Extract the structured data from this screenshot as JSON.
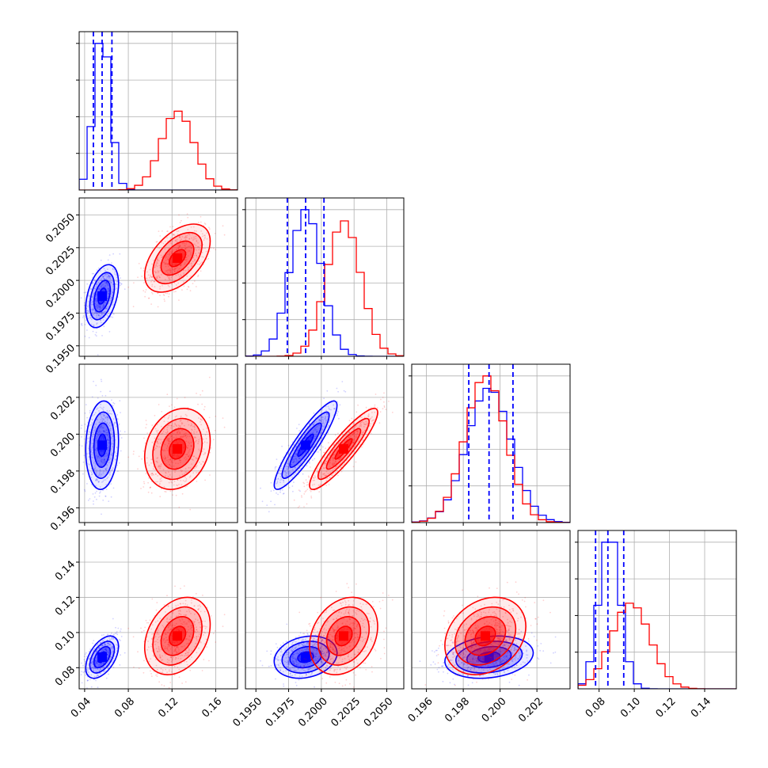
{
  "colors": {
    "series_a": "#0000ff",
    "series_b": "#ff0000",
    "grid": "#b0b0b0",
    "frame": "#000000"
  },
  "chart_data": {
    "type": "corner",
    "grid": true,
    "parameters": [
      {
        "range": [
          0.035,
          0.18
        ],
        "ticks": [
          "0.04",
          "0.08",
          "0.12",
          "0.16"
        ],
        "tick_values": [
          0.04,
          0.08,
          0.12,
          0.16
        ]
      },
      {
        "range": [
          0.1942,
          0.2063
        ],
        "ticks": [
          "0.1950",
          "0.1975",
          "0.2000",
          "0.2025",
          "0.2050"
        ],
        "tick_values": [
          0.195,
          0.1975,
          0.2,
          0.2025,
          0.205
        ]
      },
      {
        "range": [
          0.1952,
          0.2038
        ],
        "ticks": [
          "0.196",
          "0.198",
          "0.200",
          "0.202"
        ],
        "tick_values": [
          0.196,
          0.198,
          0.2,
          0.202
        ]
      },
      {
        "range": [
          0.068,
          0.158
        ],
        "ticks": [
          "0.08",
          "0.10",
          "0.12",
          "0.14"
        ],
        "tick_values": [
          0.08,
          0.1,
          0.12,
          0.14
        ]
      }
    ],
    "series": [
      {
        "color": "blue",
        "means": [
          0.056,
          0.1988,
          0.1994,
          0.086
        ],
        "sds": [
          0.0075,
          0.0012,
          0.0012,
          0.006
        ],
        "quantiles": [
          [
            0.048,
            0.056,
            0.065
          ],
          [
            0.1974,
            0.1988,
            0.2002
          ],
          [
            0.1983,
            0.1994,
            0.2007
          ],
          [
            0.078,
            0.085,
            0.094
          ]
        ]
      },
      {
        "color": "red",
        "means": [
          0.125,
          0.2017,
          0.1992,
          0.098
        ],
        "sds": [
          0.015,
          0.0013,
          0.0011,
          0.011
        ]
      }
    ],
    "correlations": [
      {
        "pair": [
          0,
          1
        ],
        "blue": 0.4,
        "red": 0.5
      },
      {
        "pair": [
          0,
          2
        ],
        "blue": 0.1,
        "red": 0.2
      },
      {
        "pair": [
          0,
          3
        ],
        "blue": 0.5,
        "red": 0.3
      },
      {
        "pair": [
          1,
          2
        ],
        "blue": 0.9,
        "red": 0.9
      },
      {
        "pair": [
          1,
          3
        ],
        "blue": 0.2,
        "red": 0.25
      },
      {
        "pair": [
          2,
          3
        ],
        "blue": 0.2,
        "red": 0.25
      }
    ]
  }
}
